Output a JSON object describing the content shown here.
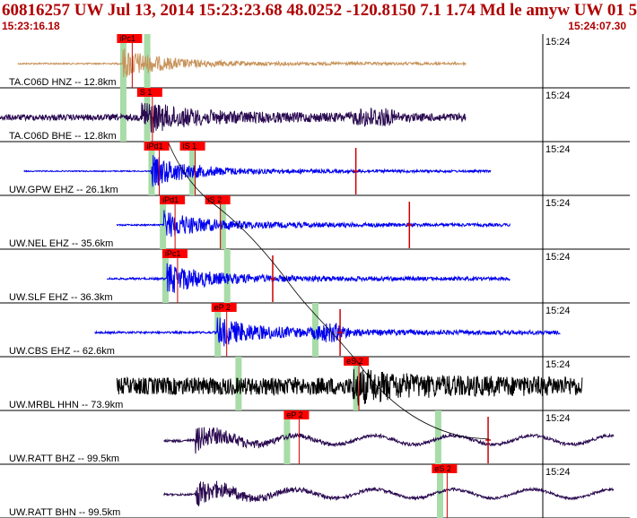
{
  "header": {
    "title": "60816257 UW Jul 13, 2014 15:23:23.68   48.0252 -120.8150   7.1 1.74 Md le amyw UW 01    5",
    "start_time": "15:23:16.18",
    "end_time": "15:24:07.30"
  },
  "colors": {
    "title": "#b00000",
    "pick_box": "#ff0000",
    "pick_line": "#cc0000",
    "highlight": "#a8dca8",
    "separator": "#000000"
  },
  "minute_label": "15:24",
  "traces": [
    {
      "label": "TA.C06D HNZ -- 12.8km",
      "color": "#c8935a",
      "x0": 0.028,
      "x1": 0.74,
      "onset": 0.195,
      "amp": 0.55,
      "noise": 0.03,
      "coda": 0.08,
      "picks": [
        {
          "label": "iPc1",
          "x": 0.19
        }
      ],
      "highlights": [
        0.195,
        0.233
      ]
    },
    {
      "label": "TA.C06D BHE -- 12.8km",
      "color": "#2a0a50",
      "x0": 0.0,
      "x1": 0.74,
      "onset": 0.225,
      "amp": 0.5,
      "noise": 0.12,
      "coda": 0.15,
      "burst": [
        0.55,
        0.64
      ],
      "picks": [
        {
          "label": "S 1",
          "x": 0.222
        }
      ],
      "highlights": [
        0.195,
        0.233
      ]
    },
    {
      "label": "UW.GPW EHZ -- 26.1km",
      "color": "#0000ee",
      "x0": 0.038,
      "x1": 0.78,
      "onset": 0.24,
      "amp": 0.55,
      "noise": 0.02,
      "coda": 0.1,
      "picks": [
        {
          "label": "iPd1",
          "x": 0.233
        },
        {
          "label": "iS 1",
          "x": 0.29
        }
      ],
      "highlights": [
        0.24,
        0.305
      ],
      "spike": 0.565
    },
    {
      "label": "UW.NEL EHZ -- 35.6km",
      "color": "#0000ee",
      "x0": 0.185,
      "x1": 0.81,
      "onset": 0.26,
      "amp": 0.45,
      "noise": 0.03,
      "coda": 0.12,
      "picks": [
        {
          "label": "iPd1",
          "x": 0.258
        },
        {
          "label": "iS 2",
          "x": 0.33
        }
      ],
      "highlights": [
        0.258,
        0.353
      ],
      "spike": 0.65
    },
    {
      "label": "UW.SLF EHZ -- 36.3km",
      "color": "#0000ee",
      "x0": 0.17,
      "x1": 0.81,
      "onset": 0.265,
      "amp": 0.5,
      "noise": 0.04,
      "coda": 0.12,
      "picks": [
        {
          "label": "iPc1",
          "x": 0.262
        }
      ],
      "highlights": [
        0.262,
        0.36
      ],
      "spike": 0.433
    },
    {
      "label": "UW.CBS EHZ -- 62.6km",
      "color": "#0000ee",
      "x0": 0.15,
      "x1": 0.89,
      "onset": 0.345,
      "amp": 0.45,
      "noise": 0.04,
      "coda": 0.15,
      "burst": [
        0.49,
        0.56
      ],
      "picks": [
        {
          "label": "eP 2",
          "x": 0.34
        }
      ],
      "highlights": [
        0.345,
        0.5
      ],
      "spike": 0.54
    },
    {
      "label": "UW.MRBL HHN -- 73.9km",
      "color": "#000000",
      "x0": 0.185,
      "x1": 0.925,
      "onset": 0.56,
      "amp": 0.4,
      "noise": 0.35,
      "coda": 0.1,
      "picks": [
        {
          "label": "eS 2",
          "x": 0.55
        }
      ],
      "highlights": [
        0.378,
        0.565
      ]
    },
    {
      "label": "UW.RATT BHZ -- 99.5km",
      "color": "#2a0a50",
      "x0": 0.26,
      "x1": 0.975,
      "onset": 0.31,
      "amp": 0.45,
      "noise": 0.05,
      "coda": 0.04,
      "wavy": true,
      "picks": [
        {
          "label": "eP 2",
          "x": 0.455
        }
      ],
      "highlights": [
        0.455,
        0.695
      ],
      "spike": 0.775
    },
    {
      "label": "UW.RATT BHN -- 99.5km",
      "color": "#2a0a50",
      "x0": 0.26,
      "x1": 0.975,
      "onset": 0.31,
      "amp": 0.5,
      "noise": 0.04,
      "coda": 0.04,
      "wavy": true,
      "picks": [
        {
          "label": "eS 2",
          "x": 0.69
        }
      ],
      "highlights": [
        0.698
      ]
    }
  ]
}
